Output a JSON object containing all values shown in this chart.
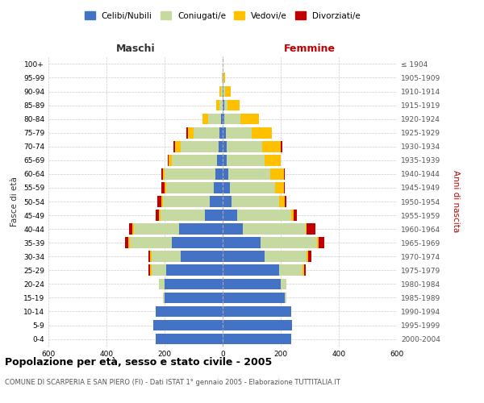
{
  "age_groups": [
    "0-4",
    "5-9",
    "10-14",
    "15-19",
    "20-24",
    "25-29",
    "30-34",
    "35-39",
    "40-44",
    "45-49",
    "50-54",
    "55-59",
    "60-64",
    "65-69",
    "70-74",
    "75-79",
    "80-84",
    "85-89",
    "90-94",
    "95-99",
    "100+"
  ],
  "birth_years": [
    "2000-2004",
    "1995-1999",
    "1990-1994",
    "1985-1989",
    "1980-1984",
    "1975-1979",
    "1970-1974",
    "1965-1969",
    "1960-1964",
    "1955-1959",
    "1950-1954",
    "1945-1949",
    "1940-1944",
    "1935-1939",
    "1930-1934",
    "1925-1929",
    "1920-1924",
    "1915-1919",
    "1910-1914",
    "1905-1909",
    "≤ 1904"
  ],
  "male": {
    "celibi": [
      230,
      240,
      230,
      200,
      200,
      195,
      145,
      175,
      150,
      60,
      45,
      30,
      25,
      20,
      15,
      10,
      5,
      0,
      0,
      0,
      0
    ],
    "coniugati": [
      0,
      0,
      0,
      5,
      20,
      50,
      100,
      145,
      155,
      155,
      160,
      165,
      175,
      155,
      130,
      90,
      45,
      12,
      5,
      2,
      0
    ],
    "vedovi": [
      0,
      0,
      0,
      0,
      0,
      5,
      5,
      5,
      5,
      5,
      5,
      5,
      5,
      10,
      20,
      20,
      20,
      10,
      5,
      2,
      0
    ],
    "divorziati": [
      0,
      0,
      0,
      0,
      0,
      5,
      5,
      10,
      12,
      10,
      15,
      10,
      5,
      5,
      5,
      5,
      0,
      0,
      0,
      0,
      0
    ]
  },
  "female": {
    "nubili": [
      235,
      240,
      235,
      215,
      200,
      195,
      145,
      130,
      70,
      50,
      30,
      25,
      20,
      15,
      15,
      10,
      5,
      5,
      2,
      0,
      0
    ],
    "coniugate": [
      0,
      0,
      0,
      5,
      20,
      80,
      145,
      195,
      215,
      185,
      165,
      155,
      145,
      130,
      120,
      90,
      55,
      12,
      5,
      2,
      0
    ],
    "vedove": [
      0,
      0,
      0,
      0,
      0,
      5,
      5,
      5,
      5,
      10,
      20,
      30,
      45,
      55,
      65,
      70,
      65,
      40,
      20,
      5,
      0
    ],
    "divorziate": [
      0,
      0,
      0,
      0,
      0,
      5,
      10,
      20,
      30,
      10,
      5,
      5,
      5,
      0,
      5,
      0,
      0,
      0,
      0,
      0,
      0
    ]
  },
  "colors": {
    "celibi": "#4472c4",
    "coniugati": "#c5d9a0",
    "vedovi": "#ffc000",
    "divorziati": "#c00000"
  },
  "title": "Popolazione per età, sesso e stato civile - 2005",
  "subtitle": "COMUNE DI SCARPERIA E SAN PIERO (FI) - Dati ISTAT 1° gennaio 2005 - Elaborazione TUTTITALIA.IT",
  "xlabel_left": "Maschi",
  "xlabel_right": "Femmine",
  "ylabel_left": "Fasce di età",
  "ylabel_right": "Anni di nascita",
  "xlim": 600,
  "legend_labels": [
    "Celibi/Nubili",
    "Coniugati/e",
    "Vedovi/e",
    "Divorziati/e"
  ],
  "bg_color": "#ffffff",
  "bar_height": 0.8
}
